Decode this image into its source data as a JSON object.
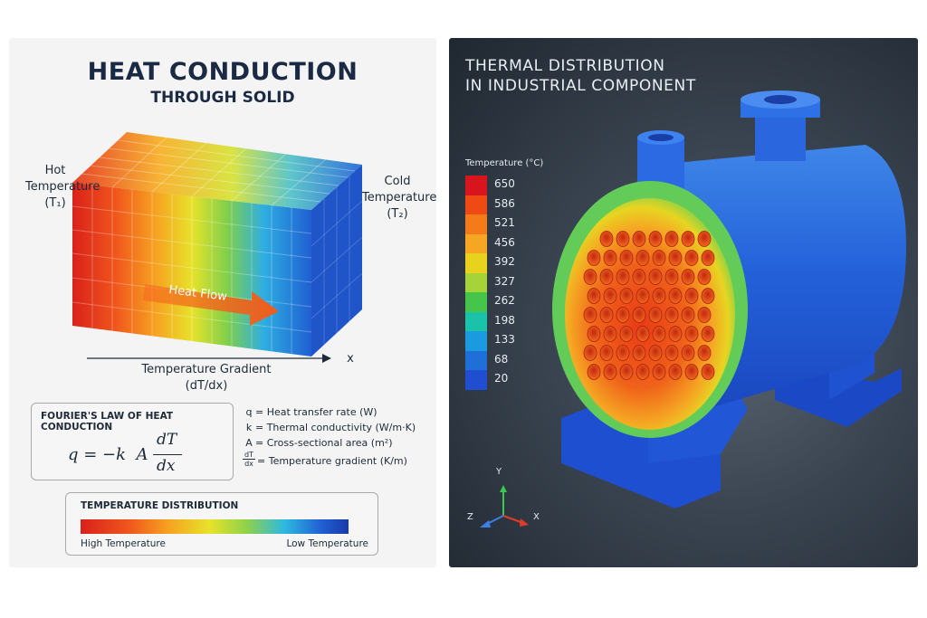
{
  "left_panel": {
    "title": "HEAT CONDUCTION",
    "subtitle": "THROUGH SOLID",
    "hot_label": "Hot",
    "hot_label2": "Temperature",
    "hot_symbol": "(T₁)",
    "cold_label": "Cold",
    "cold_label2": "Temperature",
    "cold_symbol": "(T₂)",
    "heat_flow": "Heat Flow",
    "x_axis": "x",
    "gradient_label": "Temperature Gradient",
    "gradient_symbol": "(dT/dx)",
    "fourier": {
      "title": "FOURIER'S LAW OF HEAT CONDUCTION",
      "eq_lhs": "q = −k  A",
      "eq_num": "dT",
      "eq_den": "dx",
      "defs": [
        {
          "sym": "q",
          "text": "= Heat transfer rate (W)"
        },
        {
          "sym": "k",
          "text": "= Thermal conductivity (W/m·K)"
        },
        {
          "sym": "A",
          "text": "= Cross-sectional area (m²)"
        }
      ],
      "grad_num": "dT",
      "grad_den": "dx",
      "grad_text": "= Temperature gradient (K/m)"
    },
    "distribution": {
      "title": "TEMPERATURE DISTRIBUTION",
      "high": "High Temperature",
      "low": "Low Temperature"
    }
  },
  "right_panel": {
    "title_line1": "THERMAL DISTRIBUTION",
    "title_line2": "IN INDUSTRIAL COMPONENT",
    "legend_title": "Temperature (°C)",
    "legend_values": [
      "650",
      "586",
      "521",
      "456",
      "392",
      "327",
      "262",
      "198",
      "133",
      "68",
      "20"
    ],
    "legend_colors": [
      "#d8141c",
      "#f04a14",
      "#f47a1a",
      "#f5a623",
      "#e8d21e",
      "#a6d23a",
      "#45c54a",
      "#19c2a8",
      "#1a9be0",
      "#1e6fd8",
      "#1f4fd0"
    ],
    "axes": {
      "y": "Y",
      "z": "Z",
      "x": "X"
    }
  }
}
